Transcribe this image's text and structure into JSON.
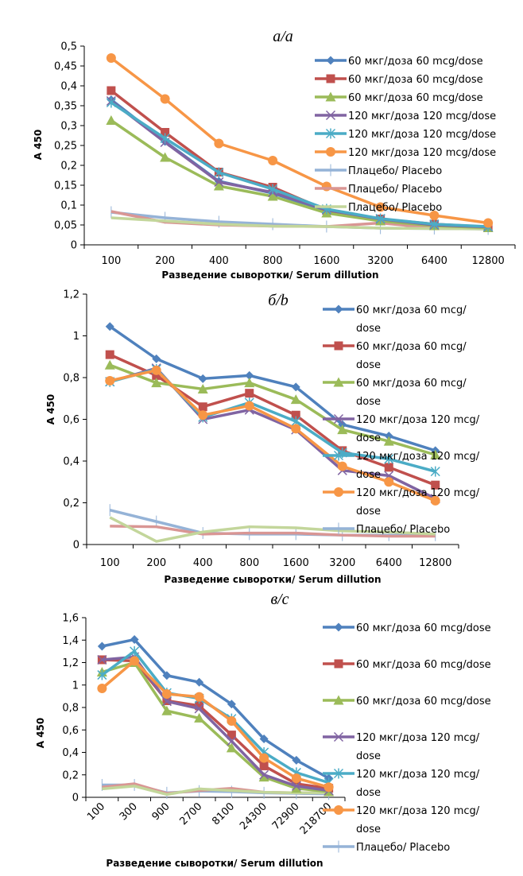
{
  "chart_data": [
    {
      "type": "line",
      "title": "а/a",
      "xlabel": "Разведение сыворотки/ Serum dillution",
      "ylabel": "A 450",
      "categories": [
        "100",
        "200",
        "400",
        "800",
        "1600",
        "3200",
        "6400",
        "12800"
      ],
      "ylim": [
        0,
        0.5
      ],
      "yticks": [
        0,
        0.05,
        0.1,
        0.15,
        0.2,
        0.25,
        0.3,
        0.35,
        0.4,
        0.45,
        0.5
      ],
      "ytick_labels": [
        "0",
        "0,05",
        "0,1",
        "0,15",
        "0,2",
        "0,25",
        "0,3",
        "0,35",
        "0,4",
        "0,45",
        "0,5"
      ],
      "legend_position": "right",
      "series": [
        {
          "name": "60 мкг/доза 60 mcg/dose",
          "color": "#4F81BD",
          "marker": "diamond",
          "values": [
            0.365,
            0.26,
            0.16,
            0.13,
            0.085,
            0.065,
            0.05,
            0.045
          ]
        },
        {
          "name": "60 мкг/доза 60 mcg/dose",
          "color": "#C0504D",
          "marker": "square",
          "values": [
            0.388,
            0.283,
            0.183,
            0.145,
            0.087,
            0.065,
            0.052,
            0.045
          ]
        },
        {
          "name": "60 мкг/доза 60 mcg/dose",
          "color": "#9BBB59",
          "marker": "triangle",
          "values": [
            0.313,
            0.22,
            0.148,
            0.122,
            0.08,
            0.06,
            0.048,
            0.043
          ]
        },
        {
          "name": "120 мкг/доза 120 mcg/dose",
          "color": "#8064A2",
          "marker": "x",
          "values": [
            0.362,
            0.258,
            0.158,
            0.132,
            0.088,
            0.065,
            0.05,
            0.045
          ]
        },
        {
          "name": "120 мкг/доза 120 mcg/dose",
          "color": "#4BACC6",
          "marker": "star",
          "values": [
            0.358,
            0.268,
            0.182,
            0.14,
            0.09,
            0.066,
            0.052,
            0.046
          ]
        },
        {
          "name": "120 мкг/доза 120 mcg/dose",
          "color": "#F79646",
          "marker": "circle",
          "values": [
            0.47,
            0.367,
            0.255,
            0.212,
            0.147,
            0.095,
            0.074,
            0.055
          ]
        },
        {
          "name": "Плацебо/ Placebo",
          "color": "#95B3D7",
          "marker": "plus",
          "values": [
            0.082,
            0.068,
            0.058,
            0.052,
            0.046,
            0.042,
            0.041,
            0.04
          ]
        },
        {
          "name": "Плацебо/ Placebo",
          "color": "#D99694",
          "marker": "none",
          "values": [
            0.084,
            0.057,
            0.05,
            0.047,
            0.046,
            0.055,
            0.042,
            0.04
          ]
        },
        {
          "name": "Плацебо/ Placebo",
          "color": "#C3D69B",
          "marker": "none",
          "values": [
            0.068,
            0.06,
            0.052,
            0.047,
            0.046,
            0.042,
            0.041,
            0.04
          ]
        }
      ]
    },
    {
      "type": "line",
      "title": "б/b",
      "xlabel": "Разведение сыворотки/ Serum dillution",
      "ylabel": "A 450",
      "categories": [
        "100",
        "200",
        "400",
        "800",
        "1600",
        "3200",
        "6400",
        "12800"
      ],
      "ylim": [
        0,
        1.2
      ],
      "yticks": [
        0,
        0.2,
        0.4,
        0.6,
        0.8,
        1,
        1.2
      ],
      "ytick_labels": [
        "0",
        "0,2",
        "0,4",
        "0,6",
        "0,8",
        "1",
        "1,2"
      ],
      "legend_position": "right",
      "series": [
        {
          "name": "60 мкг/доза 60 mcg/ dose",
          "color": "#4F81BD",
          "marker": "diamond",
          "values": [
            1.045,
            0.89,
            0.795,
            0.81,
            0.755,
            0.575,
            0.52,
            0.45
          ]
        },
        {
          "name": "60 мкг/доза 60 mcg/ dose",
          "color": "#C0504D",
          "marker": "square",
          "values": [
            0.91,
            0.81,
            0.66,
            0.725,
            0.62,
            0.45,
            0.37,
            0.285
          ]
        },
        {
          "name": "60 мкг/доза 60 mcg/ dose",
          "color": "#9BBB59",
          "marker": "triangle",
          "values": [
            0.86,
            0.775,
            0.745,
            0.775,
            0.695,
            0.55,
            0.495,
            0.43
          ]
        },
        {
          "name": "120 мкг/доза 120 mcg/ dose",
          "color": "#8064A2",
          "marker": "x",
          "values": [
            0.78,
            0.845,
            0.6,
            0.645,
            0.55,
            0.355,
            0.33,
            0.22
          ]
        },
        {
          "name": "120 мкг/доза 120 mcg/ dose",
          "color": "#4BACC6",
          "marker": "star",
          "values": [
            0.78,
            0.84,
            0.61,
            0.68,
            0.59,
            0.44,
            0.41,
            0.35
          ]
        },
        {
          "name": "120 мкг/доза 120 mcg/ dose",
          "color": "#F79646",
          "marker": "circle",
          "values": [
            0.785,
            0.835,
            0.62,
            0.665,
            0.555,
            0.375,
            0.3,
            0.21
          ]
        },
        {
          "name": "Плацебо/ Placebo",
          "color": "#95B3D7",
          "marker": "plus",
          "values": [
            0.165,
            0.11,
            0.055,
            0.05,
            0.05,
            0.045,
            0.045,
            0.045
          ]
        },
        {
          "name": "",
          "color": "#D99694",
          "marker": "none",
          "values": [
            0.088,
            0.085,
            0.05,
            0.055,
            0.055,
            0.045,
            0.04,
            0.04
          ]
        },
        {
          "name": "",
          "color": "#C3D69B",
          "marker": "none",
          "values": [
            0.13,
            0.015,
            0.06,
            0.085,
            0.08,
            0.065,
            0.06,
            0.05
          ]
        }
      ]
    },
    {
      "type": "line",
      "title": "в/c",
      "xlabel": "Разведение сыворотки/ Serum dillution",
      "ylabel": "A 450",
      "categories": [
        "100",
        "300",
        "900",
        "2700",
        "8100",
        "24300",
        "72900",
        "218700"
      ],
      "ylim": [
        0,
        1.6
      ],
      "yticks": [
        0,
        0.2,
        0.4,
        0.6,
        0.8,
        1,
        1.2,
        1.4,
        1.6
      ],
      "ytick_labels": [
        "0",
        "0,2",
        "0,4",
        "0,6",
        "0,8",
        "1",
        "1,2",
        "1,4",
        "1,6"
      ],
      "legend_position": "right",
      "series": [
        {
          "name": "60 мкг/доза 60 mcg/dose",
          "color": "#4F81BD",
          "marker": "diamond",
          "values": [
            1.345,
            1.405,
            1.085,
            1.025,
            0.83,
            0.52,
            0.33,
            0.17
          ]
        },
        {
          "name": "60 мкг/доза 60 mcg/dose",
          "color": "#C0504D",
          "marker": "square",
          "values": [
            1.225,
            1.215,
            0.86,
            0.815,
            0.555,
            0.28,
            0.12,
            0.08
          ]
        },
        {
          "name": "60 мкг/доза 60 mcg/dose",
          "color": "#9BBB59",
          "marker": "triangle",
          "values": [
            1.115,
            1.2,
            0.77,
            0.705,
            0.44,
            0.18,
            0.08,
            0.05
          ]
        },
        {
          "name": "120 мкг/доза 120 mcg/ dose",
          "color": "#8064A2",
          "marker": "x",
          "values": [
            1.225,
            1.25,
            0.855,
            0.79,
            0.5,
            0.2,
            0.1,
            0.06
          ]
        },
        {
          "name": "120 мкг/доза 120 mcg/ dose",
          "color": "#4BACC6",
          "marker": "star",
          "values": [
            1.09,
            1.3,
            0.93,
            0.88,
            0.7,
            0.4,
            0.22,
            0.13
          ]
        },
        {
          "name": "120 мкг/доза 120 mcg/ dose",
          "color": "#F79646",
          "marker": "circle",
          "values": [
            0.97,
            1.215,
            0.92,
            0.895,
            0.68,
            0.35,
            0.17,
            0.09
          ]
        },
        {
          "name": "Плацебо/ Placebo",
          "color": "#95B3D7",
          "marker": "plus",
          "values": [
            0.11,
            0.11,
            0.04,
            0.055,
            0.05,
            0.04,
            0.035,
            0.03
          ]
        },
        {
          "name": "",
          "color": "#D99694",
          "marker": "none",
          "values": [
            0.09,
            0.12,
            0.035,
            0.06,
            0.08,
            0.045,
            0.04,
            0.04
          ]
        },
        {
          "name": "",
          "color": "#C3D69B",
          "marker": "none",
          "values": [
            0.075,
            0.1,
            0.025,
            0.075,
            0.06,
            0.045,
            0.04,
            0.04
          ]
        }
      ]
    }
  ]
}
